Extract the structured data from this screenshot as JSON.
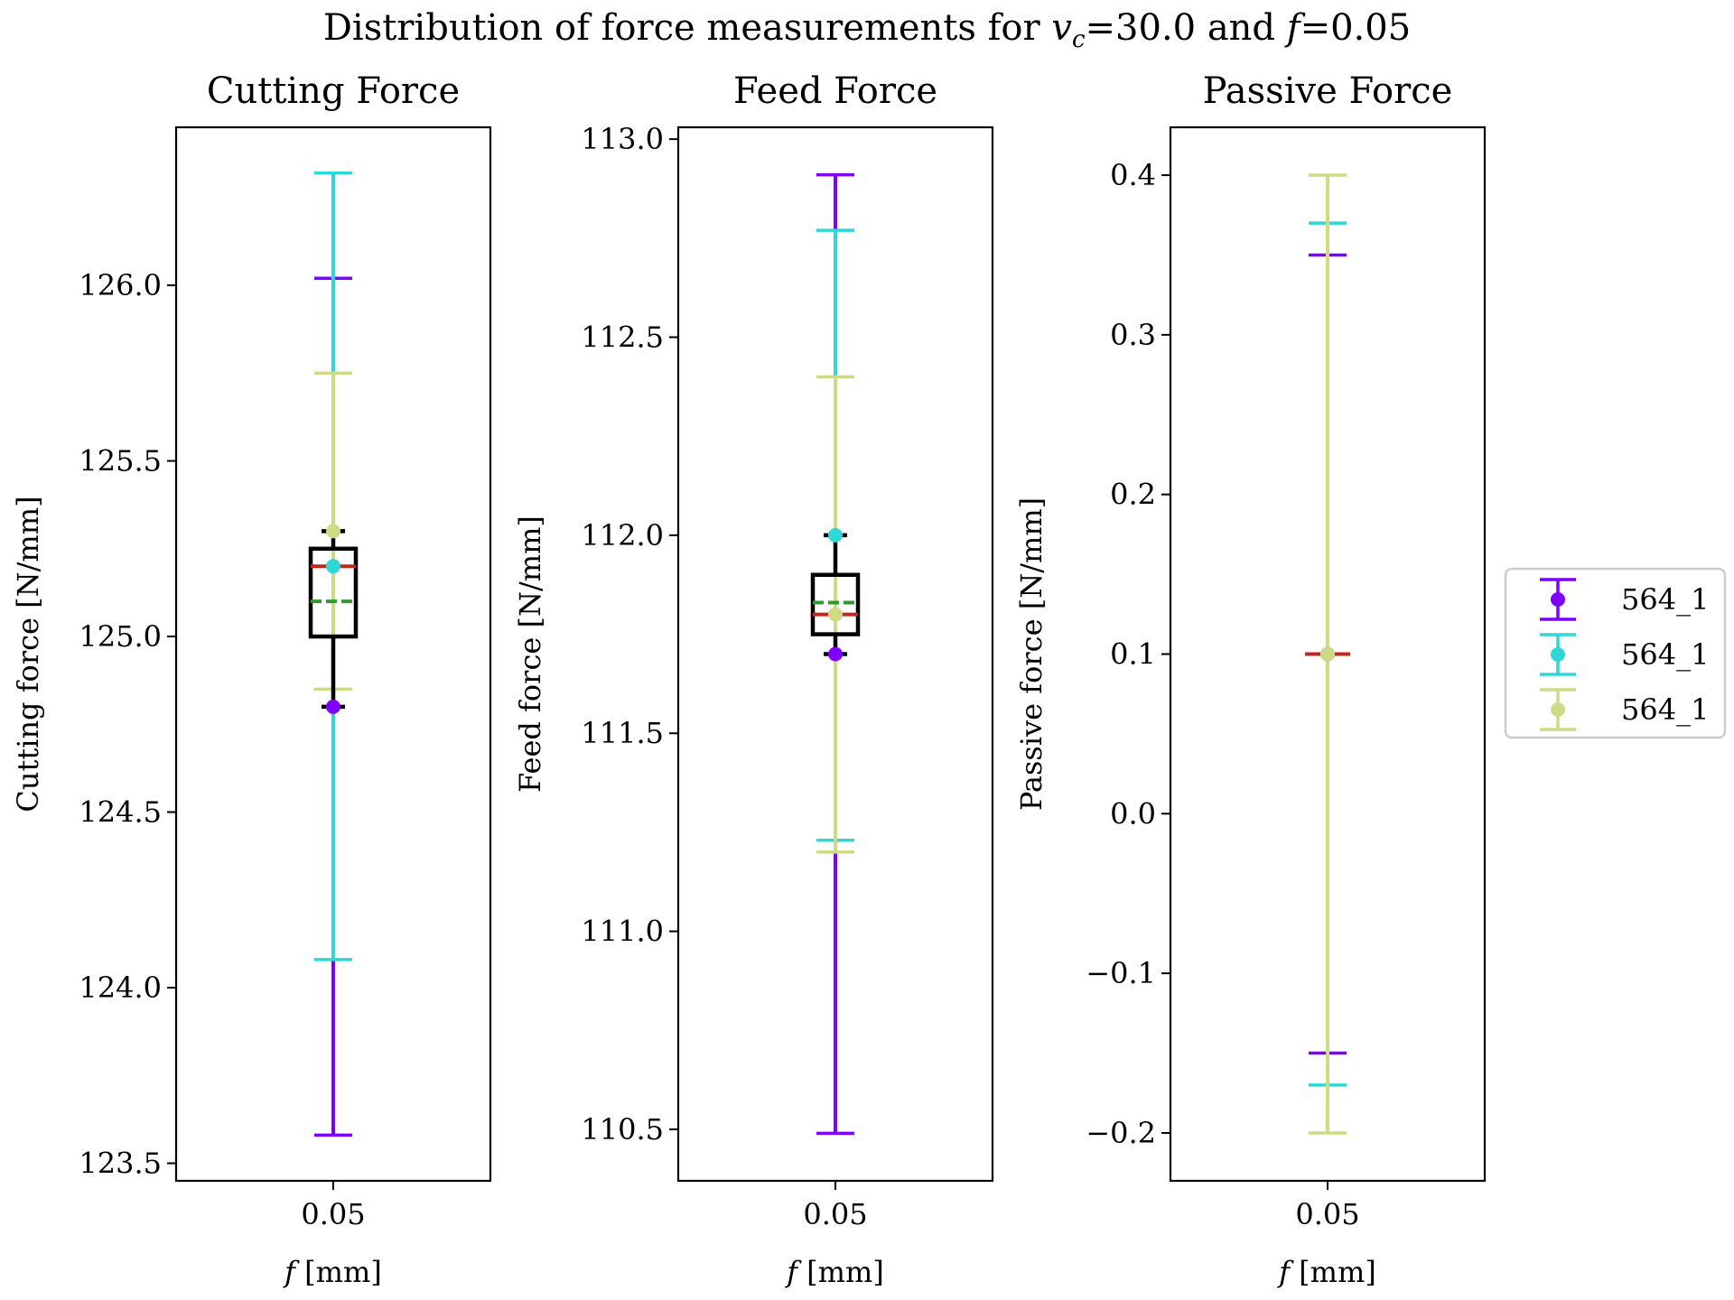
{
  "figure": {
    "title_prefix": "Distribution of force measurements for ",
    "title_v": "v",
    "title_v_sub": "c",
    "title_mid": "=30.0 and ",
    "title_f": "f",
    "title_suffix": "=0.05"
  },
  "legend": {
    "location": "center-right",
    "entries": [
      "564_1",
      "564_1",
      "564_1"
    ]
  },
  "colors": {
    "series": [
      "#7f00ff",
      "#2fd7d7",
      "#cfdb84"
    ],
    "median": "#c0281e",
    "mean": "#2f9a2f",
    "box": "#000000"
  },
  "chart_data": [
    {
      "type": "errorbar+box",
      "title": "Cutting Force",
      "xlabel_var": "f",
      "xlabel_unit": "[mm]",
      "ylabel": "Cutting force [N/mm]",
      "category": "0.05",
      "ylim": [
        123.45,
        126.45
      ],
      "yticks": [
        123.5,
        124.0,
        124.5,
        125.0,
        125.5,
        126.0
      ],
      "ytick_labels": [
        "123.5",
        "124.0",
        "124.5",
        "125.0",
        "125.5",
        "126.0"
      ],
      "series": [
        {
          "name": "564_1",
          "mean": 124.8,
          "low": 123.58,
          "high": 126.02
        },
        {
          "name": "564_1",
          "mean": 125.2,
          "low": 124.08,
          "high": 126.32
        },
        {
          "name": "564_1",
          "mean": 125.3,
          "low": 124.85,
          "high": 125.75
        }
      ],
      "box": {
        "whisker_low": 124.8,
        "q1": 125.0,
        "median": 125.2,
        "mean": 125.1,
        "q3": 125.25,
        "whisker_high": 125.3
      }
    },
    {
      "type": "errorbar+box",
      "title": "Feed Force",
      "xlabel_var": "f",
      "xlabel_unit": "[mm]",
      "ylabel": "Feed force [N/mm]",
      "category": "0.05",
      "ylim": [
        110.37,
        113.03
      ],
      "yticks": [
        110.5,
        111.0,
        111.5,
        112.0,
        112.5,
        113.0
      ],
      "ytick_labels": [
        "110.5",
        "111.0",
        "111.5",
        "112.0",
        "112.5",
        "113.0"
      ],
      "series": [
        {
          "name": "564_1",
          "mean": 111.7,
          "low": 110.49,
          "high": 112.91
        },
        {
          "name": "564_1",
          "mean": 112.0,
          "low": 111.23,
          "high": 112.77
        },
        {
          "name": "564_1",
          "mean": 111.8,
          "low": 111.2,
          "high": 112.4
        }
      ],
      "box": {
        "whisker_low": 111.7,
        "q1": 111.75,
        "median": 111.8,
        "mean": 111.83,
        "q3": 111.9,
        "whisker_high": 112.0
      }
    },
    {
      "type": "errorbar+box",
      "title": "Passive Force",
      "xlabel_var": "f",
      "xlabel_unit": "[mm]",
      "ylabel": "Passive force [N/mm]",
      "category": "0.05",
      "ylim": [
        -0.23,
        0.43
      ],
      "yticks": [
        -0.2,
        -0.1,
        0.0,
        0.1,
        0.2,
        0.3,
        0.4
      ],
      "ytick_labels": [
        "−0.2",
        "−0.1",
        "0.0",
        "0.1",
        "0.2",
        "0.3",
        "0.4"
      ],
      "series": [
        {
          "name": "564_1",
          "mean": 0.1,
          "low": -0.15,
          "high": 0.35
        },
        {
          "name": "564_1",
          "mean": 0.1,
          "low": -0.17,
          "high": 0.37
        },
        {
          "name": "564_1",
          "mean": 0.1,
          "low": -0.2,
          "high": 0.4
        }
      ],
      "box": {
        "whisker_low": 0.1,
        "q1": 0.1,
        "median": 0.1,
        "mean": 0.1,
        "q3": 0.1,
        "whisker_high": 0.1
      }
    }
  ]
}
